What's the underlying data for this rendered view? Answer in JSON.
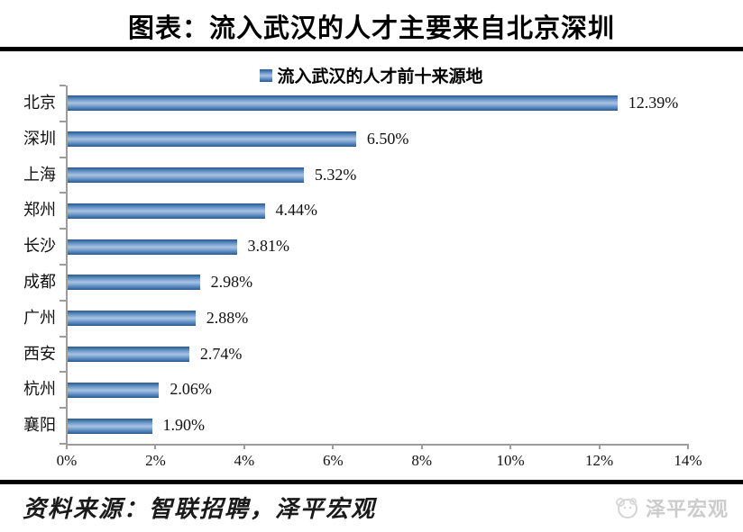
{
  "header": {
    "title": "图表：流入武汉的人才主要来自北京深圳"
  },
  "chart_data": {
    "type": "bar",
    "orientation": "horizontal",
    "title": "流入武汉的人才前十来源地",
    "legend_position": "top",
    "grid": false,
    "categories": [
      "北京",
      "深圳",
      "上海",
      "郑州",
      "长沙",
      "成都",
      "广州",
      "西安",
      "杭州",
      "襄阳"
    ],
    "values": [
      12.39,
      6.5,
      5.32,
      4.44,
      3.81,
      2.98,
      2.88,
      2.74,
      2.06,
      1.9
    ],
    "value_labels": [
      "12.39%",
      "6.50%",
      "5.32%",
      "4.44%",
      "3.81%",
      "2.98%",
      "2.88%",
      "2.74%",
      "2.06%",
      "1.90%"
    ],
    "x_tick_values": [
      0,
      2,
      4,
      6,
      8,
      10,
      12,
      14
    ],
    "x_tick_labels": [
      "0%",
      "2%",
      "4%",
      "6%",
      "8%",
      "10%",
      "12%",
      "14%"
    ],
    "xlim": [
      0,
      14
    ],
    "bar_color_edge": "#2a578e",
    "bar_color_center": "#a9c2e1",
    "axis_color": "#9c9c9c"
  },
  "footer": {
    "source_text": "资料来源：智联招聘，泽平宏观"
  },
  "watermark": {
    "brand": "泽平宏观"
  }
}
